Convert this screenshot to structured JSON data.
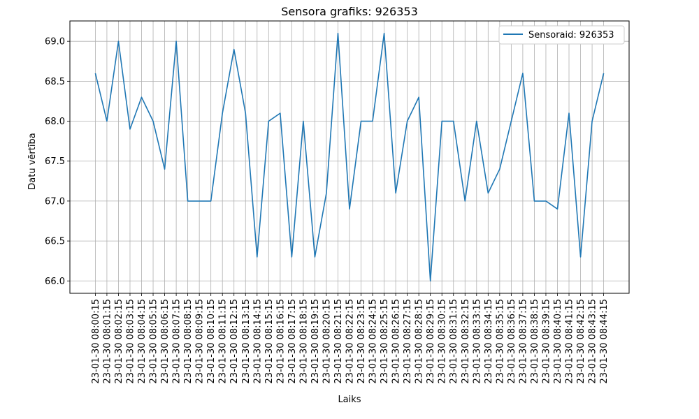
{
  "chart_data": {
    "type": "line",
    "title": "Sensora grafiks: 926353",
    "xlabel": "Laiks",
    "ylabel": "Datu vērtība",
    "x": [
      "23-01-30 08:00:15",
      "23-01-30 08:01:15",
      "23-01-30 08:02:15",
      "23-01-30 08:03:15",
      "23-01-30 08:04:15",
      "23-01-30 08:05:15",
      "23-01-30 08:06:15",
      "23-01-30 08:07:15",
      "23-01-30 08:08:15",
      "23-01-30 08:09:15",
      "23-01-30 08:10:15",
      "23-01-30 08:11:15",
      "23-01-30 08:12:15",
      "23-01-30 08:13:15",
      "23-01-30 08:14:15",
      "23-01-30 08:15:15",
      "23-01-30 08:16:15",
      "23-01-30 08:17:15",
      "23-01-30 08:18:15",
      "23-01-30 08:19:15",
      "23-01-30 08:20:15",
      "23-01-30 08:21:15",
      "23-01-30 08:22:15",
      "23-01-30 08:23:15",
      "23-01-30 08:24:15",
      "23-01-30 08:25:15",
      "23-01-30 08:26:15",
      "23-01-30 08:27:15",
      "23-01-30 08:28:15",
      "23-01-30 08:29:15",
      "23-01-30 08:30:15",
      "23-01-30 08:31:15",
      "23-01-30 08:32:15",
      "23-01-30 08:33:15",
      "23-01-30 08:34:15",
      "23-01-30 08:35:15",
      "23-01-30 08:36:15",
      "23-01-30 08:37:15",
      "23-01-30 08:38:15",
      "23-01-30 08:39:15",
      "23-01-30 08:40:15",
      "23-01-30 08:41:15",
      "23-01-30 08:42:15",
      "23-01-30 08:43:15",
      "23-01-30 08:44:15"
    ],
    "series": [
      {
        "name": "Sensoraid: 926353",
        "color": "#1f77b4",
        "values": [
          68.6,
          68.0,
          69.0,
          67.9,
          68.3,
          68.0,
          67.4,
          69.0,
          67.0,
          67.0,
          67.0,
          68.1,
          68.9,
          68.1,
          66.3,
          68.0,
          68.1,
          66.3,
          68.0,
          66.3,
          67.1,
          69.1,
          66.9,
          68.0,
          68.0,
          69.1,
          67.1,
          68.0,
          68.3,
          66.0,
          68.0,
          68.0,
          67.0,
          68.0,
          67.1,
          67.4,
          68.0,
          68.6,
          67.0,
          67.0,
          66.9,
          68.1,
          66.3,
          68.0,
          68.6
        ]
      }
    ],
    "yticks": [
      66.0,
      66.5,
      67.0,
      67.5,
      68.0,
      68.5,
      69.0
    ],
    "ytick_labels": [
      "66.0",
      "66.5",
      "67.0",
      "67.5",
      "68.0",
      "68.5",
      "69.0"
    ],
    "ylim": [
      65.845,
      69.255
    ],
    "grid": true,
    "legend_position": "top-right"
  }
}
